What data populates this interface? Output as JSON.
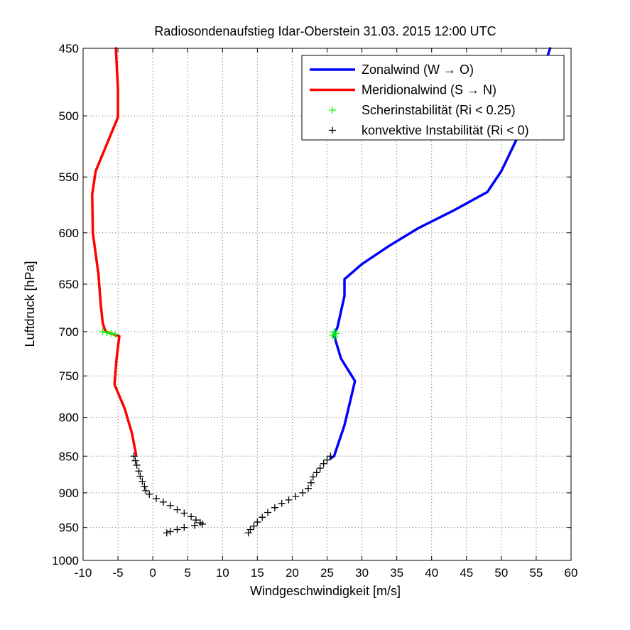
{
  "chart_data": {
    "type": "line",
    "title": "Radiosondenaufstieg Idar-Oberstein 31.03. 2015 12:00 UTC",
    "xlabel": "Windgeschwindigkeit [m/s]",
    "ylabel": "Luftdruck [hPa]",
    "xlim": [
      -10,
      60
    ],
    "ylim": [
      450,
      1000
    ],
    "y_scale": "log",
    "y_reversed": true,
    "x_ticks": [
      -10,
      -5,
      0,
      5,
      10,
      15,
      20,
      25,
      30,
      35,
      40,
      45,
      50,
      55,
      60
    ],
    "y_ticks": [
      450,
      500,
      550,
      600,
      650,
      700,
      750,
      800,
      850,
      900,
      950,
      1000
    ],
    "grid": true,
    "legend_position": "top-right",
    "series": [
      {
        "name": "Zonalwind (W → O)",
        "color": "#0000ff",
        "marker": "none",
        "x": [
          57,
          55,
          52.5,
          50,
          48,
          43,
          38,
          34,
          30,
          27.5,
          27.5,
          26.5,
          26,
          27,
          29,
          27.5,
          26,
          25.5
        ],
        "y": [
          450,
          480,
          515,
          545,
          563,
          580,
          596,
          612,
          630,
          645,
          662,
          695,
          704,
          730,
          756,
          810,
          850,
          853
        ]
      },
      {
        "name": "Meridionalwind (S → N)",
        "color": "#ff0000",
        "marker": "none",
        "x": [
          -5.3,
          -5,
          -5,
          -8.2,
          -8.7,
          -8.6,
          -7.8,
          -7.5,
          -7.2,
          -6.8,
          -4.8,
          -5.2,
          -5.5,
          -4,
          -3,
          -2.4
        ],
        "y": [
          450,
          480,
          501,
          545,
          565,
          600,
          640,
          668,
          690,
          700,
          705,
          730,
          760,
          790,
          820,
          848
        ]
      },
      {
        "name": "Scherinstabilität (Ri < 0.25)",
        "color": "#00ff00",
        "marker": "+",
        "x": [
          26,
          26.3,
          25.8,
          26.1,
          -7.2,
          -6.6,
          -6,
          -5.4
        ],
        "y": [
          700,
          702,
          704,
          706,
          700,
          701,
          702,
          703
        ]
      },
      {
        "name": "konvektive Instabilität (Ri < 0)",
        "color": "#000000",
        "marker": "+",
        "x": [
          25.5,
          25,
          24.5,
          24,
          23.5,
          23,
          22.7,
          22.3,
          21.5,
          20.5,
          19.5,
          18.5,
          17.5,
          16.5,
          15.7,
          15,
          14.5,
          14,
          13.7,
          -2.7,
          -2.5,
          -2.3,
          -2,
          -1.8,
          -1.5,
          -1.2,
          -1,
          -0.5,
          0.5,
          1.5,
          2.5,
          3.5,
          4.5,
          5.5,
          6.2,
          6.8,
          7.1,
          6,
          4.5,
          3.5,
          2.5,
          2
        ],
        "y": [
          850,
          855,
          860,
          866,
          872,
          878,
          886,
          894,
          900,
          905,
          910,
          915,
          921,
          928,
          935,
          942,
          948,
          953,
          958,
          850,
          856,
          862,
          870,
          877,
          884,
          891,
          897,
          902,
          908,
          913,
          918,
          924,
          929,
          934,
          939,
          943,
          945,
          947,
          950,
          953,
          956,
          958
        ]
      }
    ]
  }
}
